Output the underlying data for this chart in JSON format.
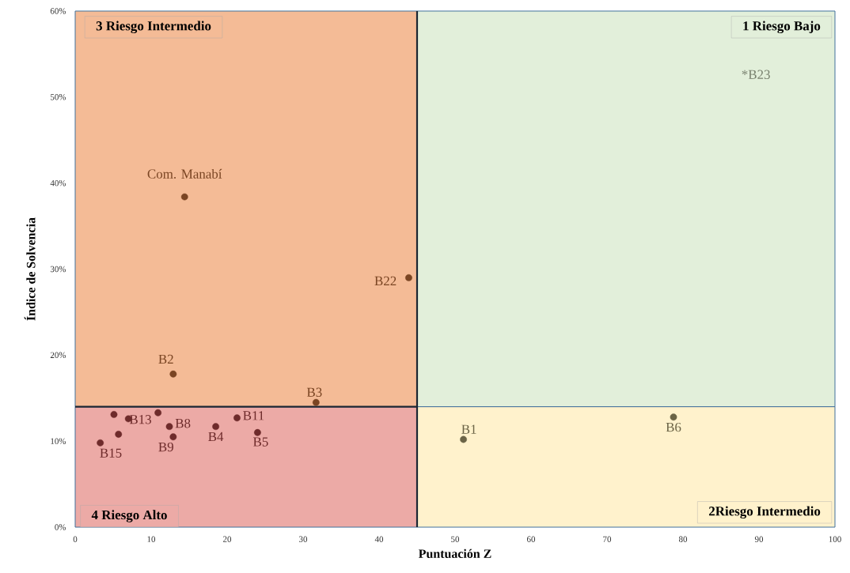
{
  "chart_data": {
    "type": "scatter",
    "xlabel": "Puntuación Z",
    "ylabel": "Índice de Solvencia",
    "marker": "circle",
    "x": [
      14.4,
      43.9,
      12.9,
      31.7,
      51.1,
      78.75,
      5.1,
      7.0,
      10.9,
      12.4,
      12.9,
      5.7,
      3.3,
      18.5,
      21.3,
      24.0
    ],
    "values": [
      38.4,
      29.0,
      17.8,
      14.5,
      10.2,
      12.8,
      13.1,
      12.6,
      13.3,
      11.7,
      10.5,
      10.8,
      9.8,
      11.7,
      12.7,
      11.0
    ],
    "value_labels": [
      "Com. Manabí",
      "B22",
      "B2",
      "B3",
      "B1",
      "B6",
      null,
      "B13",
      null,
      "B8",
      "B9",
      null,
      "B15",
      "B4",
      "B11",
      "B5"
    ],
    "colors": [
      "#7a4523",
      "#7a4523",
      "#7a4523",
      "#7a4523",
      "#6b6446",
      "#6b6446",
      "#6e2b2b",
      "#6e2b2b",
      "#6e2b2b",
      "#6e2b2b",
      "#6e2b2b",
      "#6e2b2b",
      "#6e2b2b",
      "#6e2b2b",
      "#6e2b2b",
      "#6e2b2b"
    ],
    "xlim": [
      0,
      100
    ],
    "ylim": [
      0,
      60
    ],
    "xticks": [
      0,
      10,
      20,
      30,
      40,
      50,
      60,
      70,
      80,
      90,
      100
    ],
    "yticks": [
      {
        "value": 0,
        "label": "0%"
      },
      {
        "value": 10,
        "label": "10%"
      },
      {
        "value": 20,
        "label": "20%"
      },
      {
        "value": 30,
        "label": "30%"
      },
      {
        "value": 40,
        "label": "40%"
      },
      {
        "value": 50,
        "label": "50%"
      },
      {
        "value": 60,
        "label": "60%"
      }
    ],
    "bands": [
      {
        "axis": "x",
        "from": 0,
        "to": 45,
        "color": "#f4bb96",
        "label": "3 Riesgo Intermedio"
      },
      {
        "axis": "x",
        "from": 45,
        "to": 100,
        "color": "#e2efda",
        "label": "1 Riesgo Bajo"
      },
      {
        "axis": "y",
        "from": 0,
        "to": 14,
        "color": "#ecaaa6",
        "label": "4 Riesgo Alto"
      },
      {
        "axis": "y",
        "from": 0,
        "to": 14,
        "color": "#fff2cc",
        "label": "2Riesgo Intermedio"
      }
    ],
    "ref_lines": [
      {
        "axis": "x",
        "value": 45,
        "color": "#1a2633"
      },
      {
        "axis": "y",
        "value": 14,
        "color": "#1a2633"
      }
    ],
    "annotations": [
      "*B23"
    ]
  }
}
